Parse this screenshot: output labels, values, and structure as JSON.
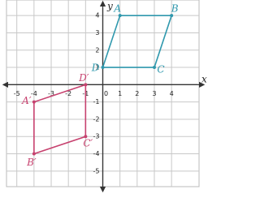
{
  "chart_data": {
    "type": "polygon",
    "xlim": [
      -5.6,
      5.6
    ],
    "ylim": [
      -5.9,
      4.9
    ],
    "xticks": [
      -5,
      -4,
      -3,
      -2,
      -1,
      0,
      1,
      2,
      3,
      4
    ],
    "yticks": [
      -5,
      -4,
      -3,
      -2,
      -1,
      1,
      2,
      3,
      4
    ],
    "x_label": "x",
    "y_label": "y",
    "grid": true,
    "series": [
      {
        "color": "#2f98ad",
        "labels": [
          "A",
          "B",
          "C",
          "D"
        ],
        "x": [
          1,
          4,
          3,
          0
        ],
        "y": [
          4,
          4,
          1,
          1
        ]
      },
      {
        "color": "#c7426f",
        "labels": [
          "A′",
          "B′",
          "C′",
          "D′"
        ],
        "x": [
          -4,
          -4,
          -1,
          -1
        ],
        "y": [
          -1,
          -4,
          -3,
          0
        ]
      }
    ]
  }
}
